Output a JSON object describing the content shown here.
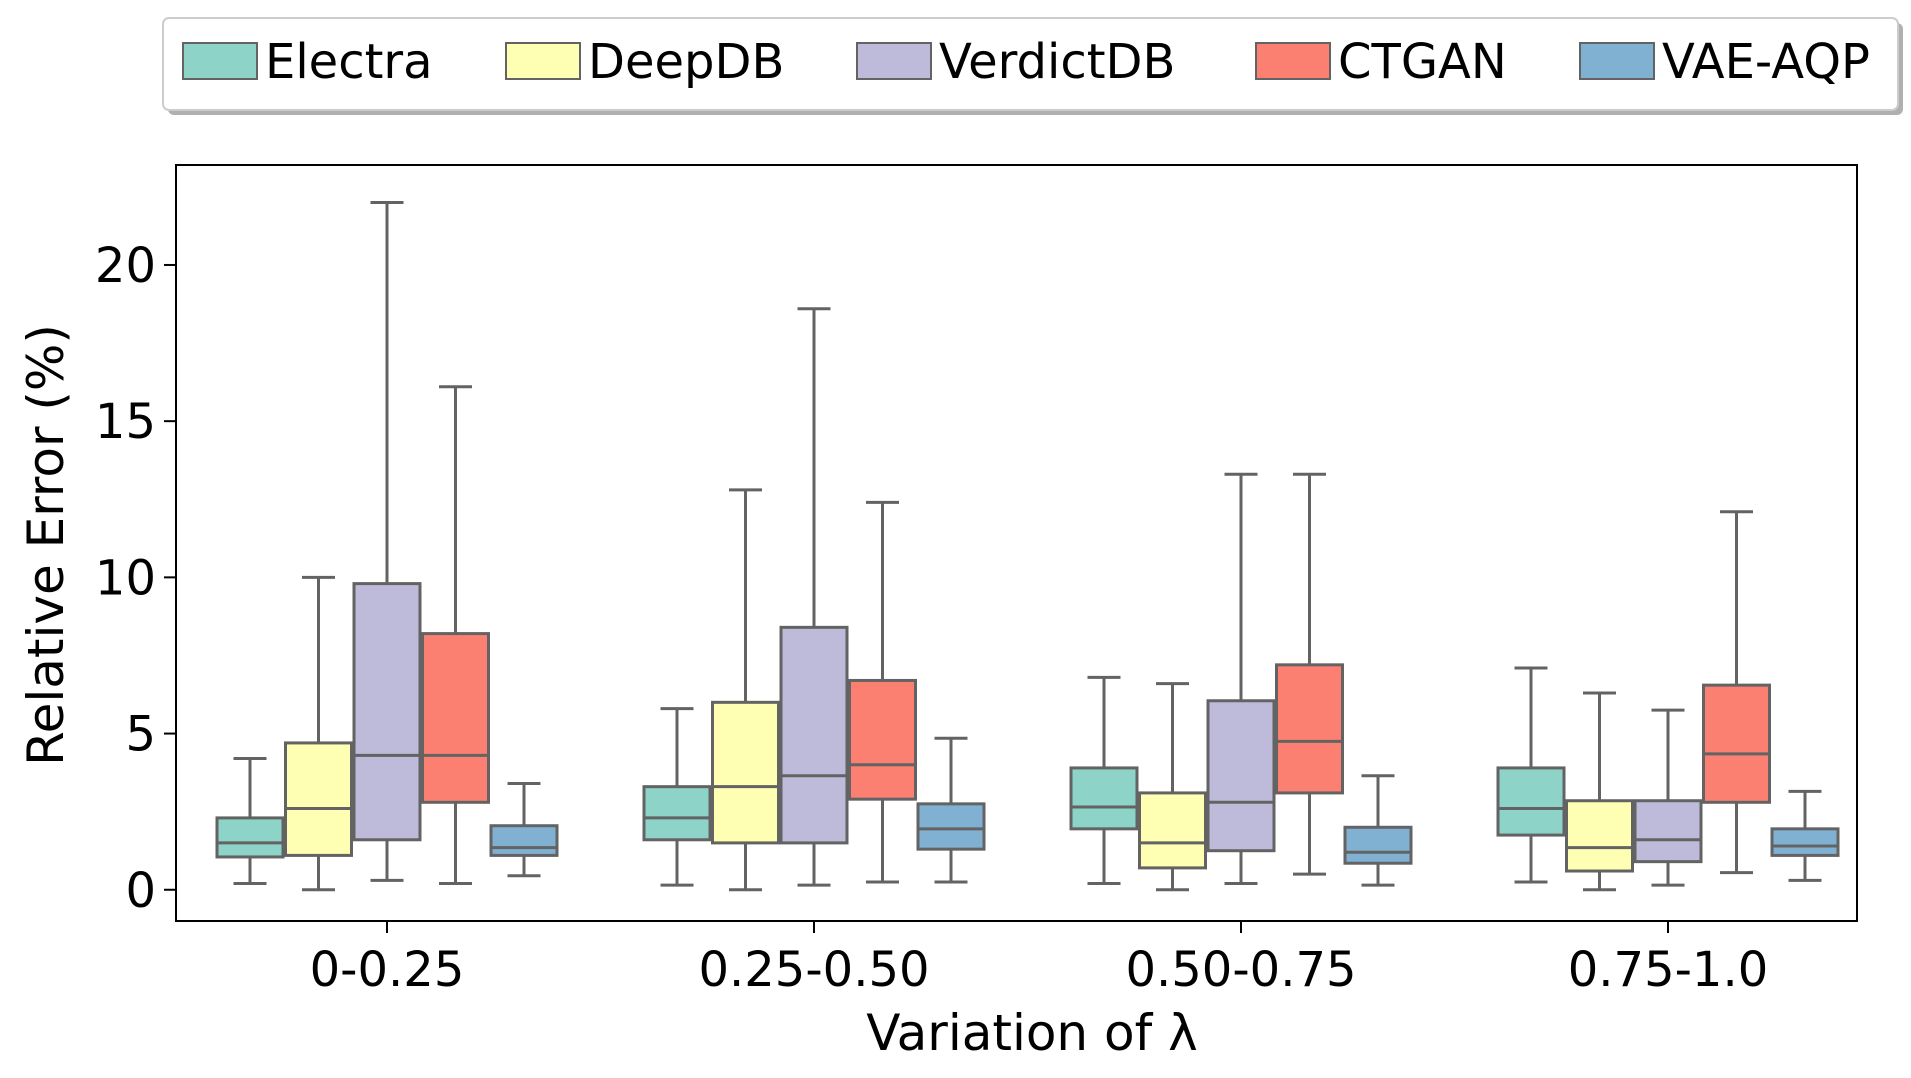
{
  "chart_data": {
    "type": "boxplot",
    "xlabel": "Variation of λ",
    "ylabel": "Relative Error (%)",
    "ylim": [
      -1.0,
      23.2
    ],
    "yticks": [
      0,
      5,
      10,
      15,
      20
    ],
    "categories": [
      "0-0.25",
      "0.25-0.50",
      "0.50-0.75",
      "0.75-1.0"
    ],
    "legend_position": "top",
    "box_outline_color": "#636363",
    "series": [
      {
        "name": "Electra",
        "color": "#8dd3c7",
        "boxes": [
          {
            "whislo": 0.2,
            "q1": 1.05,
            "med": 1.5,
            "q3": 2.3,
            "whishi": 4.2
          },
          {
            "whislo": 0.15,
            "q1": 1.6,
            "med": 2.3,
            "q3": 3.3,
            "whishi": 5.8
          },
          {
            "whislo": 0.2,
            "q1": 1.95,
            "med": 2.65,
            "q3": 3.9,
            "whishi": 6.8
          },
          {
            "whislo": 0.25,
            "q1": 1.75,
            "med": 2.6,
            "q3": 3.9,
            "whishi": 7.1
          }
        ]
      },
      {
        "name": "DeepDB",
        "color": "#ffffb3",
        "boxes": [
          {
            "whislo": 0.0,
            "q1": 1.1,
            "med": 2.6,
            "q3": 4.7,
            "whishi": 10.0
          },
          {
            "whislo": 0.0,
            "q1": 1.5,
            "med": 3.3,
            "q3": 6.0,
            "whishi": 12.8
          },
          {
            "whislo": 0.0,
            "q1": 0.7,
            "med": 1.5,
            "q3": 3.1,
            "whishi": 6.6
          },
          {
            "whislo": 0.0,
            "q1": 0.6,
            "med": 1.35,
            "q3": 2.85,
            "whishi": 6.3
          }
        ]
      },
      {
        "name": "VerdictDB",
        "color": "#bebada",
        "boxes": [
          {
            "whislo": 0.3,
            "q1": 1.6,
            "med": 4.3,
            "q3": 9.8,
            "whishi": 22.0
          },
          {
            "whislo": 0.15,
            "q1": 1.5,
            "med": 3.65,
            "q3": 8.4,
            "whishi": 18.6
          },
          {
            "whislo": 0.2,
            "q1": 1.25,
            "med": 2.8,
            "q3": 6.05,
            "whishi": 13.3
          },
          {
            "whislo": 0.15,
            "q1": 0.9,
            "med": 1.6,
            "q3": 2.85,
            "whishi": 5.75
          }
        ]
      },
      {
        "name": "CTGAN",
        "color": "#fb8072",
        "boxes": [
          {
            "whislo": 0.2,
            "q1": 2.8,
            "med": 4.3,
            "q3": 8.2,
            "whishi": 16.1
          },
          {
            "whislo": 0.25,
            "q1": 2.9,
            "med": 4.0,
            "q3": 6.7,
            "whishi": 12.4
          },
          {
            "whislo": 0.5,
            "q1": 3.1,
            "med": 4.75,
            "q3": 7.2,
            "whishi": 13.3
          },
          {
            "whislo": 0.55,
            "q1": 2.8,
            "med": 4.35,
            "q3": 6.55,
            "whishi": 12.1
          }
        ]
      },
      {
        "name": "VAE-AQP",
        "color": "#80b1d3",
        "boxes": [
          {
            "whislo": 0.45,
            "q1": 1.1,
            "med": 1.35,
            "q3": 2.05,
            "whishi": 3.4
          },
          {
            "whislo": 0.25,
            "q1": 1.3,
            "med": 1.95,
            "q3": 2.75,
            "whishi": 4.85
          },
          {
            "whislo": 0.15,
            "q1": 0.85,
            "med": 1.2,
            "q3": 2.0,
            "whishi": 3.65
          },
          {
            "whislo": 0.3,
            "q1": 1.1,
            "med": 1.4,
            "q3": 1.95,
            "whishi": 3.15
          }
        ]
      }
    ]
  }
}
